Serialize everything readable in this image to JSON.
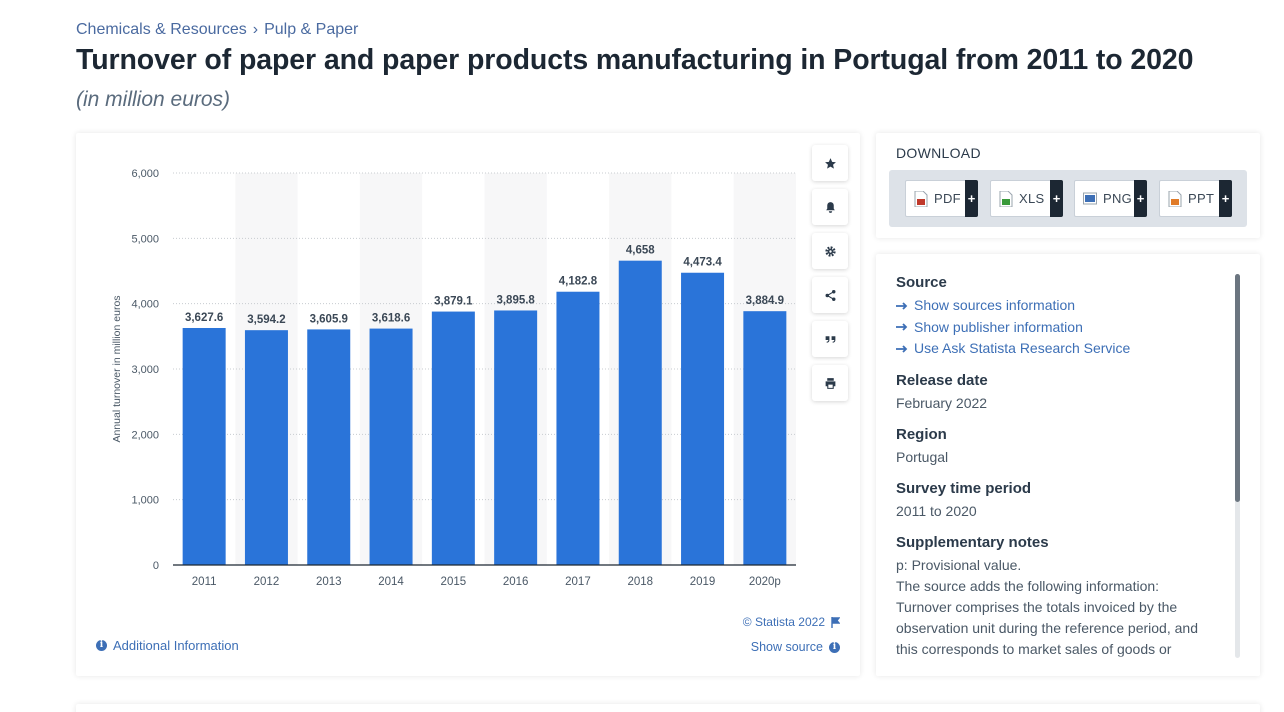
{
  "breadcrumb": {
    "items": [
      "Chemicals & Resources",
      "Pulp & Paper"
    ],
    "separator": "›"
  },
  "page": {
    "title": "Turnover of paper and paper products manufacturing in Portugal from 2011 to 2020",
    "subtitle": "(in million euros)"
  },
  "chart_data": {
    "type": "bar",
    "categories": [
      "2011",
      "2012",
      "2013",
      "2014",
      "2015",
      "2016",
      "2017",
      "2018",
      "2019",
      "2020p"
    ],
    "values": [
      3627.6,
      3594.2,
      3605.9,
      3618.6,
      3879.1,
      3895.8,
      4182.8,
      4658,
      4473.4,
      3884.9
    ],
    "value_labels": [
      "3,627.6",
      "3,594.2",
      "3,605.9",
      "3,618.6",
      "3,879.1",
      "3,895.8",
      "4,182.8",
      "4,658",
      "4,473.4",
      "3,884.9"
    ],
    "ylabel": "Annual turnover in million euros",
    "xlabel": "",
    "ylim": [
      0,
      6000
    ],
    "yticks": [
      0,
      1000,
      2000,
      3000,
      4000,
      5000,
      6000
    ],
    "ytick_labels": [
      "0",
      "1,000",
      "2,000",
      "3,000",
      "4,000",
      "5,000",
      "6,000"
    ],
    "grid": true,
    "bar_color": "#2a74d9"
  },
  "chart_tools": [
    "star-icon",
    "bell-icon",
    "gear-icon",
    "share-icon",
    "quote-icon",
    "print-icon"
  ],
  "chart_footer": {
    "additional_info": "Additional Information",
    "copyright": "© Statista 2022",
    "show_source": "Show source"
  },
  "download": {
    "label": "DOWNLOAD",
    "buttons": [
      {
        "label": "PDF",
        "icon": "pdf-file-icon",
        "color": "#c0392b"
      },
      {
        "label": "XLS",
        "icon": "xls-file-icon",
        "color": "#3a9a3a"
      },
      {
        "label": "PNG",
        "icon": "png-file-icon",
        "color": "#3d6fb6"
      },
      {
        "label": "PPT",
        "icon": "ppt-file-icon",
        "color": "#e07b28"
      }
    ],
    "plus": "+"
  },
  "info": {
    "source_heading": "Source",
    "source_links": [
      "Show sources information",
      "Show publisher information",
      "Use Ask Statista Research Service"
    ],
    "release_heading": "Release date",
    "release_value": "February 2022",
    "region_heading": "Region",
    "region_value": "Portugal",
    "period_heading": "Survey time period",
    "period_value": "2011 to 2020",
    "notes_heading": "Supplementary notes",
    "notes_lines": [
      "p: Provisional value.",
      "The source adds the following information:",
      "Turnover comprises the totals invoiced by the",
      "observation unit during the reference period, and",
      "this corresponds to market sales of goods or"
    ]
  },
  "colors": {
    "accent": "#3d6fb6",
    "title": "#1c2733",
    "bar": "#2a74d9"
  }
}
